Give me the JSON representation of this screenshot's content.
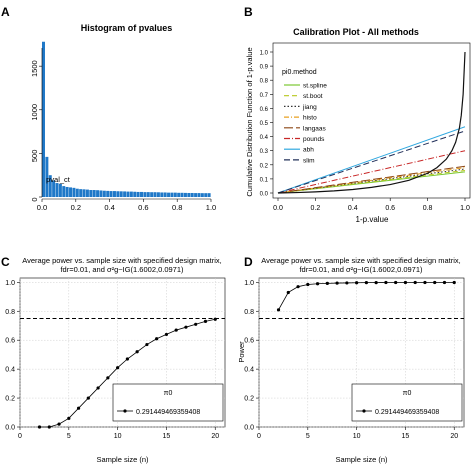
{
  "panels": [
    {
      "letter": "A"
    },
    {
      "letter": "B"
    },
    {
      "letter": "C"
    },
    {
      "letter": "D"
    }
  ],
  "chart_data": [
    {
      "id": "A",
      "type": "bar",
      "title": "Histogram of pvalues",
      "xlabel": "pval_ct",
      "ylabel": "",
      "xlim": [
        0,
        1
      ],
      "ylim": [
        0,
        1800
      ],
      "xticks": [
        "0.0",
        "0.2",
        "0.4",
        "0.6",
        "0.8",
        "1.0"
      ],
      "yticks": [
        "0",
        "500",
        "1000",
        "1500"
      ],
      "color": "#1f78c8",
      "bin_width": 0.02,
      "values": [
        1780,
        460,
        250,
        190,
        160,
        150,
        125,
        115,
        110,
        105,
        95,
        90,
        88,
        85,
        80,
        80,
        78,
        75,
        72,
        70,
        68,
        68,
        66,
        65,
        64,
        62,
        62,
        60,
        58,
        58,
        56,
        56,
        55,
        55,
        54,
        52,
        52,
        50,
        50,
        50,
        48,
        48,
        47,
        46,
        46,
        45,
        45,
        44,
        44,
        44
      ]
    },
    {
      "id": "B",
      "type": "line",
      "title": "Calibration Plot - All methods",
      "xlabel": "1-p.value",
      "ylabel": "Cumulative Distribution Function of 1-p.value",
      "xlim": [
        0,
        1
      ],
      "ylim": [
        0,
        1
      ],
      "xticks": [
        "0.0",
        "0.2",
        "0.4",
        "0.6",
        "0.8",
        "1.0"
      ],
      "yticks": [
        "0.0",
        "0.1",
        "0.2",
        "0.3",
        "0.4",
        "0.5",
        "0.6",
        "0.7",
        "0.8",
        "0.9",
        "1.0"
      ],
      "legend_title": "pi0.method",
      "legend_position": "top-left",
      "series": [
        {
          "name": "st.spline",
          "color": "#7cc832",
          "dash": "",
          "x": [
            0,
            1
          ],
          "y": [
            0,
            0.15
          ]
        },
        {
          "name": "st.boot",
          "color": "#b8c81e",
          "dash": "5,3",
          "x": [
            0,
            1
          ],
          "y": [
            0,
            0.16
          ]
        },
        {
          "name": "jiang",
          "color": "#333333",
          "dash": "1.5,2",
          "x": [
            0,
            1
          ],
          "y": [
            0,
            0.17
          ]
        },
        {
          "name": "histo",
          "color": "#e8a020",
          "dash": "5,2,1,2",
          "x": [
            0,
            1
          ],
          "y": [
            0,
            0.18
          ]
        },
        {
          "name": "langaas",
          "color": "#8b4513",
          "dash": "9,3",
          "x": [
            0,
            1
          ],
          "y": [
            0,
            0.19
          ]
        },
        {
          "name": "pounds",
          "color": "#c82828",
          "dash": "6,2,1,2",
          "x": [
            0,
            1
          ],
          "y": [
            0,
            0.3
          ]
        },
        {
          "name": "abh",
          "color": "#30a8e0",
          "dash": "",
          "x": [
            0,
            1
          ],
          "y": [
            0,
            0.47
          ]
        },
        {
          "name": "slim",
          "color": "#22305a",
          "dash": "6,3",
          "x": [
            0,
            1
          ],
          "y": [
            0,
            0.44
          ]
        }
      ],
      "empirical_curve": {
        "color": "#111111",
        "x": [
          0,
          0.1,
          0.2,
          0.3,
          0.4,
          0.5,
          0.6,
          0.7,
          0.8,
          0.85,
          0.9,
          0.93,
          0.95,
          0.97,
          0.98,
          0.99,
          1.0
        ],
        "y": [
          0,
          0.003,
          0.008,
          0.015,
          0.025,
          0.04,
          0.06,
          0.09,
          0.14,
          0.18,
          0.24,
          0.3,
          0.36,
          0.46,
          0.55,
          0.7,
          1.0
        ]
      }
    },
    {
      "id": "C",
      "type": "line",
      "title_lines": [
        "Average power vs. sample size with specified design matrix,",
        "fdr=0.01, and σ²g~IG(1.6002,0.0971)"
      ],
      "xlabel": "Sample size (n)",
      "ylabel": "",
      "xlim": [
        0,
        21
      ],
      "ylim": [
        0,
        1.03
      ],
      "xticks": [
        0,
        5,
        10,
        15,
        20
      ],
      "yticks": [
        "0.0",
        "0.2",
        "0.4",
        "0.6",
        "0.8",
        "1.0"
      ],
      "reference_line": 0.75,
      "legend_title": "π0",
      "legend_position": "bottom-right",
      "series": [
        {
          "name": "0.291449469359408",
          "x": [
            2,
            3,
            4,
            5,
            6,
            7,
            8,
            9,
            10,
            11,
            12,
            13,
            14,
            15,
            16,
            17,
            18,
            19,
            20
          ],
          "y": [
            0.0,
            0.0,
            0.02,
            0.06,
            0.13,
            0.2,
            0.27,
            0.34,
            0.41,
            0.47,
            0.52,
            0.57,
            0.61,
            0.64,
            0.67,
            0.69,
            0.71,
            0.73,
            0.745
          ]
        }
      ]
    },
    {
      "id": "D",
      "type": "line",
      "title_lines": [
        "Average power vs. sample size with specified design matrix,",
        "fdr=0.01, and σ²g~IG(1.6002,0.0971)"
      ],
      "xlabel": "Sample size (n)",
      "ylabel": "Power",
      "xlim": [
        0,
        21
      ],
      "ylim": [
        0,
        1.03
      ],
      "xticks": [
        0,
        5,
        10,
        15,
        20
      ],
      "yticks": [
        "0.0",
        "0.2",
        "0.4",
        "0.6",
        "0.8",
        "1.0"
      ],
      "reference_line": 0.75,
      "legend_title": "π0",
      "legend_position": "bottom-right",
      "series": [
        {
          "name": "0.291449469359408",
          "x": [
            2,
            3,
            4,
            5,
            6,
            7,
            8,
            9,
            10,
            11,
            12,
            13,
            14,
            15,
            16,
            17,
            18,
            19,
            20
          ],
          "y": [
            0.81,
            0.93,
            0.97,
            0.985,
            0.99,
            0.993,
            0.995,
            0.996,
            0.997,
            0.998,
            0.998,
            0.999,
            0.999,
            0.999,
            0.999,
            0.999,
            0.999,
            0.999,
            0.999
          ]
        }
      ]
    }
  ]
}
